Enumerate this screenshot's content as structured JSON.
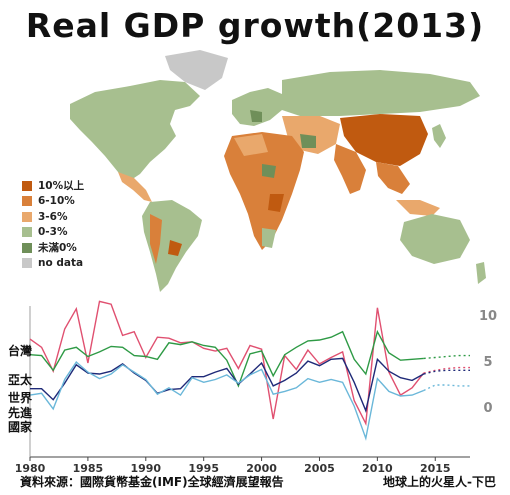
{
  "title": "Real GDP growth(2013)",
  "legend": {
    "items": [
      {
        "label": "10%以上",
        "color": "#c05a10"
      },
      {
        "label": "6-10%",
        "color": "#d9803a"
      },
      {
        "label": "3-6%",
        "color": "#e9a86c"
      },
      {
        "label": "0-3%",
        "color": "#a7bf8f"
      },
      {
        "label": "未滿0%",
        "color": "#6f8f59"
      },
      {
        "label": "no data",
        "color": "#c8c8c8"
      }
    ]
  },
  "region_labels": {
    "taiwan": "台灣",
    "asia_pacific": "亞太",
    "world": "世界",
    "advanced_1": "先進",
    "advanced_2": "國家"
  },
  "source": "資料來源：國際貨幣基金(IMF)全球經濟展望報告",
  "credit": "地球上的火星人-下巴",
  "colors": {
    "taiwan": "#e05070",
    "asia_pacific": "#2e9a45",
    "world": "#1f2a78",
    "advanced": "#6ab7d9"
  },
  "chart_data": {
    "type": "line",
    "title": "",
    "xlabel": "",
    "ylabel": "",
    "x": [
      1980,
      1981,
      1982,
      1983,
      1984,
      1985,
      1986,
      1987,
      1988,
      1989,
      1990,
      1991,
      1992,
      1993,
      1994,
      1995,
      1996,
      1997,
      1998,
      1999,
      2000,
      2001,
      2002,
      2003,
      2004,
      2005,
      2006,
      2007,
      2008,
      2009,
      2010,
      2011,
      2012,
      2013,
      2014,
      2015,
      2016,
      2017,
      2018
    ],
    "xticks": [
      1980,
      1985,
      1990,
      1995,
      2000,
      2005,
      2010,
      2015
    ],
    "yticks": [
      0,
      5,
      10
    ],
    "ylim": [
      -5,
      11
    ],
    "xlim": [
      1980,
      2018
    ],
    "forecast_from": 2014,
    "series": [
      {
        "name": "台灣",
        "values": [
          7.4,
          6.5,
          3.9,
          8.5,
          10.7,
          4.8,
          11.5,
          11.2,
          7.8,
          8.2,
          5.4,
          7.6,
          7.5,
          7.0,
          7.1,
          6.4,
          6.1,
          6.4,
          4.2,
          6.7,
          6.3,
          -1.3,
          5.6,
          4.1,
          6.2,
          4.7,
          5.4,
          6.0,
          0.7,
          -1.8,
          10.8,
          3.8,
          1.3,
          2.1,
          3.7,
          4.0,
          4.2,
          4.3,
          4.3
        ]
      },
      {
        "name": "亞太",
        "values": [
          5.7,
          5.6,
          4.0,
          6.2,
          6.5,
          5.5,
          6.0,
          6.6,
          6.5,
          5.6,
          5.5,
          5.2,
          7.0,
          6.8,
          7.1,
          6.7,
          6.5,
          5.1,
          2.3,
          5.8,
          6.1,
          3.4,
          5.7,
          6.5,
          7.2,
          7.3,
          7.6,
          8.2,
          5.2,
          3.6,
          8.2,
          5.9,
          5.1,
          5.2,
          5.3,
          5.4,
          5.5,
          5.6,
          5.6
        ]
      },
      {
        "name": "世界",
        "values": [
          2.0,
          2.0,
          0.8,
          2.6,
          4.6,
          3.7,
          3.6,
          3.9,
          4.7,
          3.7,
          2.9,
          1.5,
          1.9,
          2.0,
          3.3,
          3.3,
          3.8,
          4.2,
          2.5,
          3.6,
          4.8,
          2.3,
          2.9,
          3.7,
          5.0,
          4.5,
          5.2,
          5.3,
          2.7,
          -0.4,
          5.2,
          3.9,
          3.2,
          2.9,
          3.6,
          3.9,
          4.0,
          4.0,
          4.0
        ]
      },
      {
        "name": "先進國家",
        "values": [
          1.3,
          1.5,
          -0.2,
          3.0,
          4.9,
          3.8,
          3.1,
          3.6,
          4.6,
          3.8,
          3.0,
          1.4,
          2.1,
          1.3,
          3.2,
          2.7,
          3.0,
          3.5,
          2.6,
          3.5,
          4.1,
          1.4,
          1.7,
          2.1,
          3.1,
          2.7,
          3.0,
          2.7,
          0.1,
          -3.4,
          3.1,
          1.7,
          1.2,
          1.3,
          1.8,
          2.4,
          2.4,
          2.3,
          2.3
        ]
      }
    ]
  }
}
